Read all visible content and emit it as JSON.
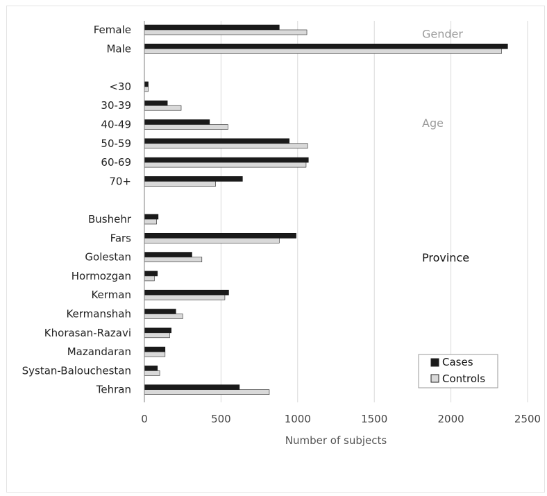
{
  "chart_data": {
    "type": "bar",
    "orientation": "horizontal",
    "xlabel": "Number of subjects",
    "xlim": [
      0,
      2500
    ],
    "xticks": [
      0,
      500,
      1000,
      1500,
      2000,
      2500
    ],
    "grid": true,
    "legend_position": "bottom-right",
    "series": [
      {
        "name": "Cases",
        "color": "#1a1a1a"
      },
      {
        "name": "Controls",
        "color": "#d9d9d9"
      }
    ],
    "groups": [
      {
        "label": "Gender",
        "label_color": "#9a9a9a",
        "categories": [
          "Female",
          "Male"
        ],
        "cases": [
          880,
          2370
        ],
        "controls": [
          1060,
          2330
        ]
      },
      {
        "label": "Age",
        "label_color": "#9a9a9a",
        "categories": [
          "<30",
          "30-39",
          "40-49",
          "50-59",
          "60-69",
          "70+"
        ],
        "cases": [
          25,
          150,
          425,
          945,
          1070,
          640
        ],
        "controls": [
          25,
          240,
          545,
          1065,
          1055,
          465
        ]
      },
      {
        "label": "Province",
        "label_color": "#111111",
        "categories": [
          "Bushehr",
          "Fars",
          "Golestan",
          "Hormozgan",
          "Kerman",
          "Kermanshah",
          "Khorasan-Razavi",
          "Mazandaran",
          "Systan-Balouchestan",
          "Tehran"
        ],
        "cases": [
          90,
          990,
          310,
          85,
          550,
          205,
          175,
          135,
          85,
          620
        ],
        "controls": [
          80,
          880,
          375,
          65,
          525,
          250,
          165,
          135,
          100,
          815
        ]
      }
    ]
  }
}
